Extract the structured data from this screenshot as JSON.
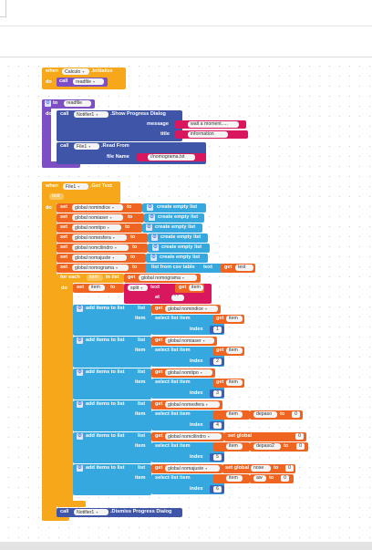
{
  "colors": {
    "control": "#f6a81a",
    "procedure": "#7e4fc4",
    "component": "#3f55a8",
    "text": "#d8175e",
    "list": "#36a8e0",
    "variable": "#ee6420",
    "math": "#3a5fb8"
  },
  "event_initialize": {
    "when": "when",
    "component": "Calculo",
    "event": ".Initialize",
    "do": "do",
    "call": "call",
    "procedure": "readfile"
  },
  "proc_readfile": {
    "to": "to",
    "name": "readfile",
    "do": "do",
    "call1": "call",
    "notifier": "Notifier1",
    "method1": ".Show Progress Dialog",
    "message_label": "message",
    "message_value": "wait a moment.....",
    "title_label": "title",
    "title_value": "information",
    "call2": "call",
    "file": "File1",
    "method2": ".Read From",
    "filename_label": "file Name",
    "filename_value": "//nomograma.txt"
  },
  "event_gottext": {
    "when": "when",
    "component": "File1",
    "event": ".Got Text",
    "param": "text",
    "do": "do",
    "set": "set",
    "to": "to",
    "create_empty_list": "create empty list",
    "globals": [
      "global nomindice",
      "global nomiaser",
      "global nomtipo",
      "global nomesfera",
      "global nomcilindro",
      "global nomajuste",
      "global nomograma"
    ],
    "list_from_csv": "list from csv table",
    "text_label": "text",
    "get": "get",
    "get_text": "text",
    "for_each": "for each",
    "item_var": "item",
    "in_list": "in list",
    "get_global_nomograma": "global nomograma",
    "inner_do": "do",
    "set_item": "item",
    "split": "split",
    "at": "at",
    "at_value": "\" \"",
    "get_item": "item",
    "add_items_to_list": "add items to list",
    "list_label": "list",
    "item_label": "item",
    "select_list_item": "select list item",
    "index_label": "index",
    "adds": [
      {
        "global": "global nomindice",
        "index": "1"
      },
      {
        "global": "global nomiaser",
        "index": "2"
      },
      {
        "global": "global nomtipo",
        "index": "3"
      },
      {
        "global": "global nomesfera",
        "index": "4",
        "extra_var": "depaso",
        "extra_num": "0"
      },
      {
        "global": "global nomcilindro",
        "index": "5",
        "extra_var": "depaso2",
        "extra_num": "0"
      },
      {
        "global": "global nomajuste",
        "index": "6",
        "extra_var": "nose",
        "extra_num": "0",
        "extra2_var": "aw",
        "extra2_num": "0"
      }
    ],
    "set_global_label": "set global",
    "call": "call",
    "notifier": "Notifier1",
    "dismiss": ".Dismiss Progress Dialog"
  }
}
